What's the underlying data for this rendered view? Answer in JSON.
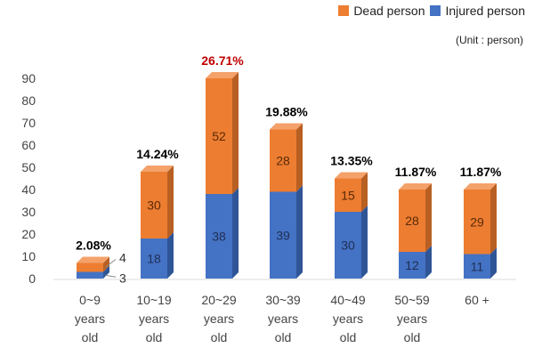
{
  "colors": {
    "dead": "#ED7D31",
    "dead_top": "#F4A16A",
    "dead_side": "#B85F22",
    "injured": "#4472C4",
    "injured_top": "#7096DA",
    "injured_side": "#2F5597",
    "highlight_pct": "#C00000",
    "normal_pct": "#000000"
  },
  "unit_label": "(Unit : person)",
  "chart_data": {
    "type": "bar",
    "stacked": true,
    "categories": [
      [
        "0~9",
        "years",
        "old"
      ],
      [
        "10~19",
        "years",
        "old"
      ],
      [
        "20~29",
        "years",
        "old"
      ],
      [
        "30~39",
        "years",
        "old"
      ],
      [
        "40~49",
        "years",
        "old"
      ],
      [
        "50~59",
        "years",
        "old"
      ],
      [
        "60 +"
      ]
    ],
    "series": [
      {
        "name": "Injured person",
        "color_key": "injured",
        "values": [
          3,
          18,
          38,
          39,
          30,
          12,
          11
        ]
      },
      {
        "name": "Dead person",
        "color_key": "dead",
        "values": [
          4,
          30,
          52,
          28,
          15,
          28,
          29
        ]
      }
    ],
    "percent_labels": [
      "2.08%",
      "14.24%",
      "26.71%",
      "19.88%",
      "13.35%",
      "11.87%",
      "11.87%"
    ],
    "highlight_index": 2,
    "ylim": [
      0,
      90
    ],
    "yticks": [
      0,
      10,
      20,
      30,
      40,
      50,
      60,
      70,
      80,
      90
    ],
    "legend": [
      {
        "name": "Dead person",
        "color_key": "dead"
      },
      {
        "name": "Injured person",
        "color_key": "injured"
      }
    ],
    "legend_position": "top-right",
    "grid": false
  }
}
